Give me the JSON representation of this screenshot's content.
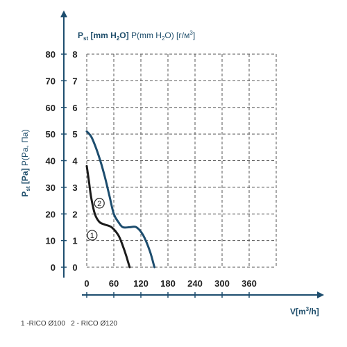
{
  "chart_data": {
    "type": "line",
    "title": "",
    "ylabel_left": {
      "main": "P",
      "sub": "st",
      "rest_bold": " [Pa]",
      "rest": " P(Pa, Па)"
    },
    "ylabel_top": {
      "main": "P",
      "sub": "st",
      "bold": " [mm H",
      "bold_sub": "2",
      "bold_end": "O]",
      "rest": " P(mm H",
      "rest_sub": "2",
      "rest_end": "O) [г/м",
      "rest_sup": "3",
      "rest_close": "]"
    },
    "xlabel": {
      "main": "V[m",
      "sup": "3",
      "end": "/h]"
    },
    "x_ticks": [
      0,
      60,
      120,
      180,
      240,
      300,
      360
    ],
    "x_tick_labels": [
      "0",
      "60",
      "120",
      "180",
      "240",
      "300",
      "360"
    ],
    "y_ticks": [
      0,
      10,
      20,
      30,
      40,
      50,
      60,
      70,
      80
    ],
    "y_tick_labels": [
      "0",
      "10",
      "20",
      "30",
      "40",
      "50",
      "60",
      "70",
      "80"
    ],
    "y2_tick_labels": [
      "0",
      "1",
      "2",
      "3",
      "4",
      "5",
      "6",
      "7",
      "8"
    ],
    "xlim": [
      0,
      420
    ],
    "ylim": [
      0,
      80
    ],
    "grid": true,
    "series": [
      {
        "name": "1",
        "color": "#1b1b1b",
        "x": [
          0,
          5,
          10,
          18,
          28,
          40,
          55,
          70,
          80,
          88,
          95
        ],
        "y": [
          38,
          32,
          26,
          20,
          17,
          16,
          15,
          12,
          8,
          4,
          0
        ]
      },
      {
        "name": "2",
        "color": "#1d4d6e",
        "x": [
          0,
          10,
          20,
          30,
          40,
          50,
          60,
          70,
          80,
          95,
          110,
          125,
          140,
          150
        ],
        "y": [
          51,
          49,
          45,
          40,
          34,
          27,
          20,
          17,
          15,
          15,
          15,
          12,
          6,
          0
        ]
      }
    ],
    "series_markers": [
      "1",
      "2"
    ],
    "footnote": "1 -RICO Ø100   2 - RICO Ø120"
  }
}
